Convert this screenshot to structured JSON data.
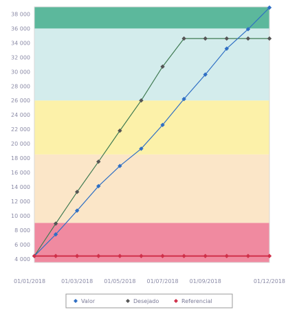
{
  "chart_data": {
    "type": "line",
    "title": "",
    "xlabel": "",
    "ylabel": "",
    "x": [
      "01/01/2018",
      "01/02/2018",
      "01/03/2018",
      "01/04/2018",
      "01/05/2018",
      "01/06/2018",
      "01/07/2018",
      "01/08/2018",
      "01/09/2018",
      "01/10/2018",
      "01/11/2018",
      "01/12/2018"
    ],
    "x_tick_labels": [
      "01/01/2018",
      "01/03/2018",
      "01/05/2018",
      "01/07/2018",
      "01/09/2018",
      "01/12/2018"
    ],
    "y_tick_labels": [
      "4 000",
      "6 000",
      "8 000",
      "10 000",
      "12 000",
      "14 000",
      "16 000",
      "18 000",
      "20 000",
      "22 000",
      "24 000",
      "26 000",
      "28 000",
      "30 000",
      "32 000",
      "34 000",
      "36 000",
      "38 000"
    ],
    "ylim": [
      3500,
      39000
    ],
    "grid": false,
    "legend_position": "bottom",
    "bands": [
      {
        "from": 3500,
        "to": 9000,
        "color": "#f08aa0"
      },
      {
        "from": 9000,
        "to": 18500,
        "color": "#fbe6c8"
      },
      {
        "from": 18500,
        "to": 26000,
        "color": "#fcf1a9"
      },
      {
        "from": 26000,
        "to": 36000,
        "color": "#d3ecec"
      },
      {
        "from": 36000,
        "to": 39000,
        "color": "#5cb89c"
      }
    ],
    "series": [
      {
        "name": "Valor",
        "color": "#2f6fc4",
        "marker": "diamond",
        "values": [
          4400,
          7400,
          10700,
          14100,
          16900,
          19300,
          22600,
          26200,
          29600,
          33200,
          35900,
          38900
        ]
      },
      {
        "name": "Desejado",
        "color": "#3f7a52",
        "marker": "diamond",
        "values": [
          4400,
          8900,
          13300,
          17500,
          21800,
          26000,
          30700,
          34600,
          34600,
          34600,
          34600,
          34600
        ]
      },
      {
        "name": "Referencial",
        "color": "#d0304a",
        "marker": "diamond",
        "values": [
          4400,
          4400,
          4400,
          4400,
          4400,
          4400,
          4400,
          4400,
          4400,
          4400,
          4400,
          4400
        ]
      }
    ]
  },
  "legend": {
    "items": [
      {
        "label": "Valor",
        "color": "#2f6fc4"
      },
      {
        "label": "Desejado",
        "color": "#555555"
      },
      {
        "label": "Referencial",
        "color": "#d0304a"
      }
    ]
  }
}
